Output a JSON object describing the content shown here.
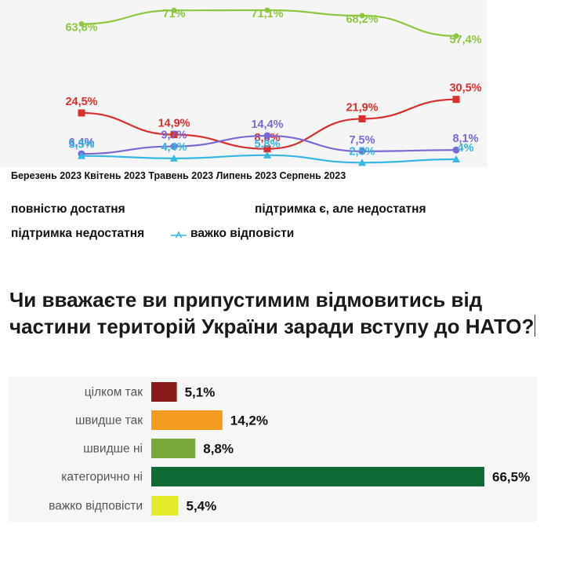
{
  "months_caption": "Березень 2023 Квітень 2023 Травень 2023 Липень 2023 Серпень 2023",
  "legend": {
    "fully_sufficient": "повністю достатня",
    "support_insufficient": "підтримка є, але недостатня",
    "insufficient": "підтримка недостатня",
    "hard_to_say": "важко відповісти"
  },
  "question": "Чи вважаєте ви припустимим відмовитись від частини територій України заради вступу до НАТО?",
  "chart_data": [
    {
      "type": "line",
      "categories": [
        "Березень 2023",
        "Квітень 2023",
        "Травень 2023",
        "Липень 2023",
        "Серпень 2023"
      ],
      "series": [
        {
          "name": "повністю достатня",
          "color": "#8dc63f",
          "values": [
            63.8,
            71,
            71.1,
            68.2,
            57.4
          ],
          "labels": [
            "63,8%",
            "71%",
            "71,1%",
            "68,2%",
            "57,4%"
          ]
        },
        {
          "name": "підтримка є, але недостатня",
          "color": "#d7302e",
          "values": [
            24.5,
            14.9,
            8.6,
            21.9,
            30.5
          ],
          "labels": [
            "24,5%",
            "14,9%",
            "8,6%",
            "21,9%",
            "30,5%"
          ]
        },
        {
          "name": "підтримка недостатня",
          "color": "#7b68d6",
          "values": [
            6.4,
            9.7,
            14.4,
            7.5,
            8.1
          ],
          "labels": [
            "6,4%",
            "9,7%",
            "14,4%",
            "7,5%",
            "8,1%"
          ]
        },
        {
          "name": "важко відповісти",
          "color": "#35b7e4",
          "values": [
            5.5,
            4.4,
            5.8,
            2.5,
            4
          ],
          "labels": [
            "5,5%",
            "4,4%",
            "5,8%",
            "2,5%",
            "4%"
          ]
        }
      ]
    },
    {
      "type": "bar",
      "orientation": "horizontal",
      "categories": [
        "цілком так",
        "швидше так",
        "швидше ні",
        "категорично ні",
        "важко відповісти"
      ],
      "values": [
        5.1,
        14.2,
        8.8,
        66.5,
        5.4
      ],
      "labels": [
        "5,1%",
        "14,2%",
        "8,8%",
        "66,5%",
        "5,4%"
      ],
      "colors": [
        "#8b1a1a",
        "#f39c1f",
        "#7aa83a",
        "#0f6b35",
        "#e4ec2a"
      ]
    }
  ]
}
